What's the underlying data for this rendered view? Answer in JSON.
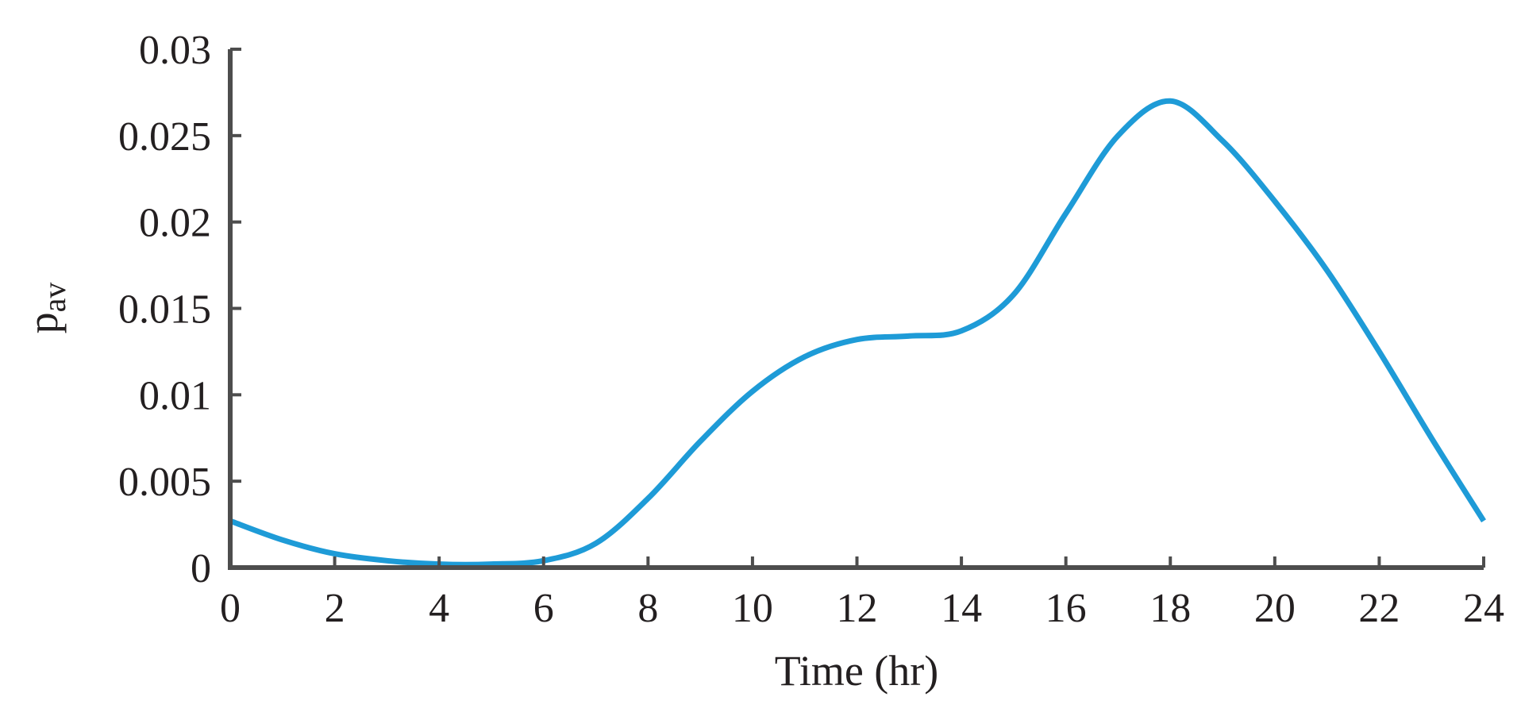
{
  "chart_data": {
    "type": "line",
    "title": "",
    "xlabel": "Time (hr)",
    "ylabel": "p",
    "ylabel_subscript": "av",
    "xlim": [
      0,
      24
    ],
    "ylim": [
      0,
      0.03
    ],
    "xticks": [
      "0",
      "2",
      "4",
      "6",
      "8",
      "10",
      "12",
      "14",
      "16",
      "18",
      "20",
      "22",
      "24"
    ],
    "yticks": [
      "0",
      "0.005",
      "0.01",
      "0.015",
      "0.02",
      "0.025",
      "0.03"
    ],
    "grid": false,
    "series": [
      {
        "color": "#1e9bd7",
        "x": [
          0,
          1,
          2,
          3,
          4,
          5,
          6,
          7,
          8,
          9,
          10,
          11,
          12,
          13,
          14,
          15,
          16,
          17,
          18,
          19,
          20,
          21,
          22,
          23,
          24
        ],
        "y": [
          0.0027,
          0.0016,
          0.0008,
          0.0004,
          0.0002,
          0.0002,
          0.0004,
          0.0014,
          0.004,
          0.0073,
          0.0102,
          0.0122,
          0.0132,
          0.0134,
          0.0137,
          0.0158,
          0.0205,
          0.025,
          0.027,
          0.0247,
          0.0212,
          0.0172,
          0.0125,
          0.0075,
          0.0027
        ]
      }
    ]
  }
}
